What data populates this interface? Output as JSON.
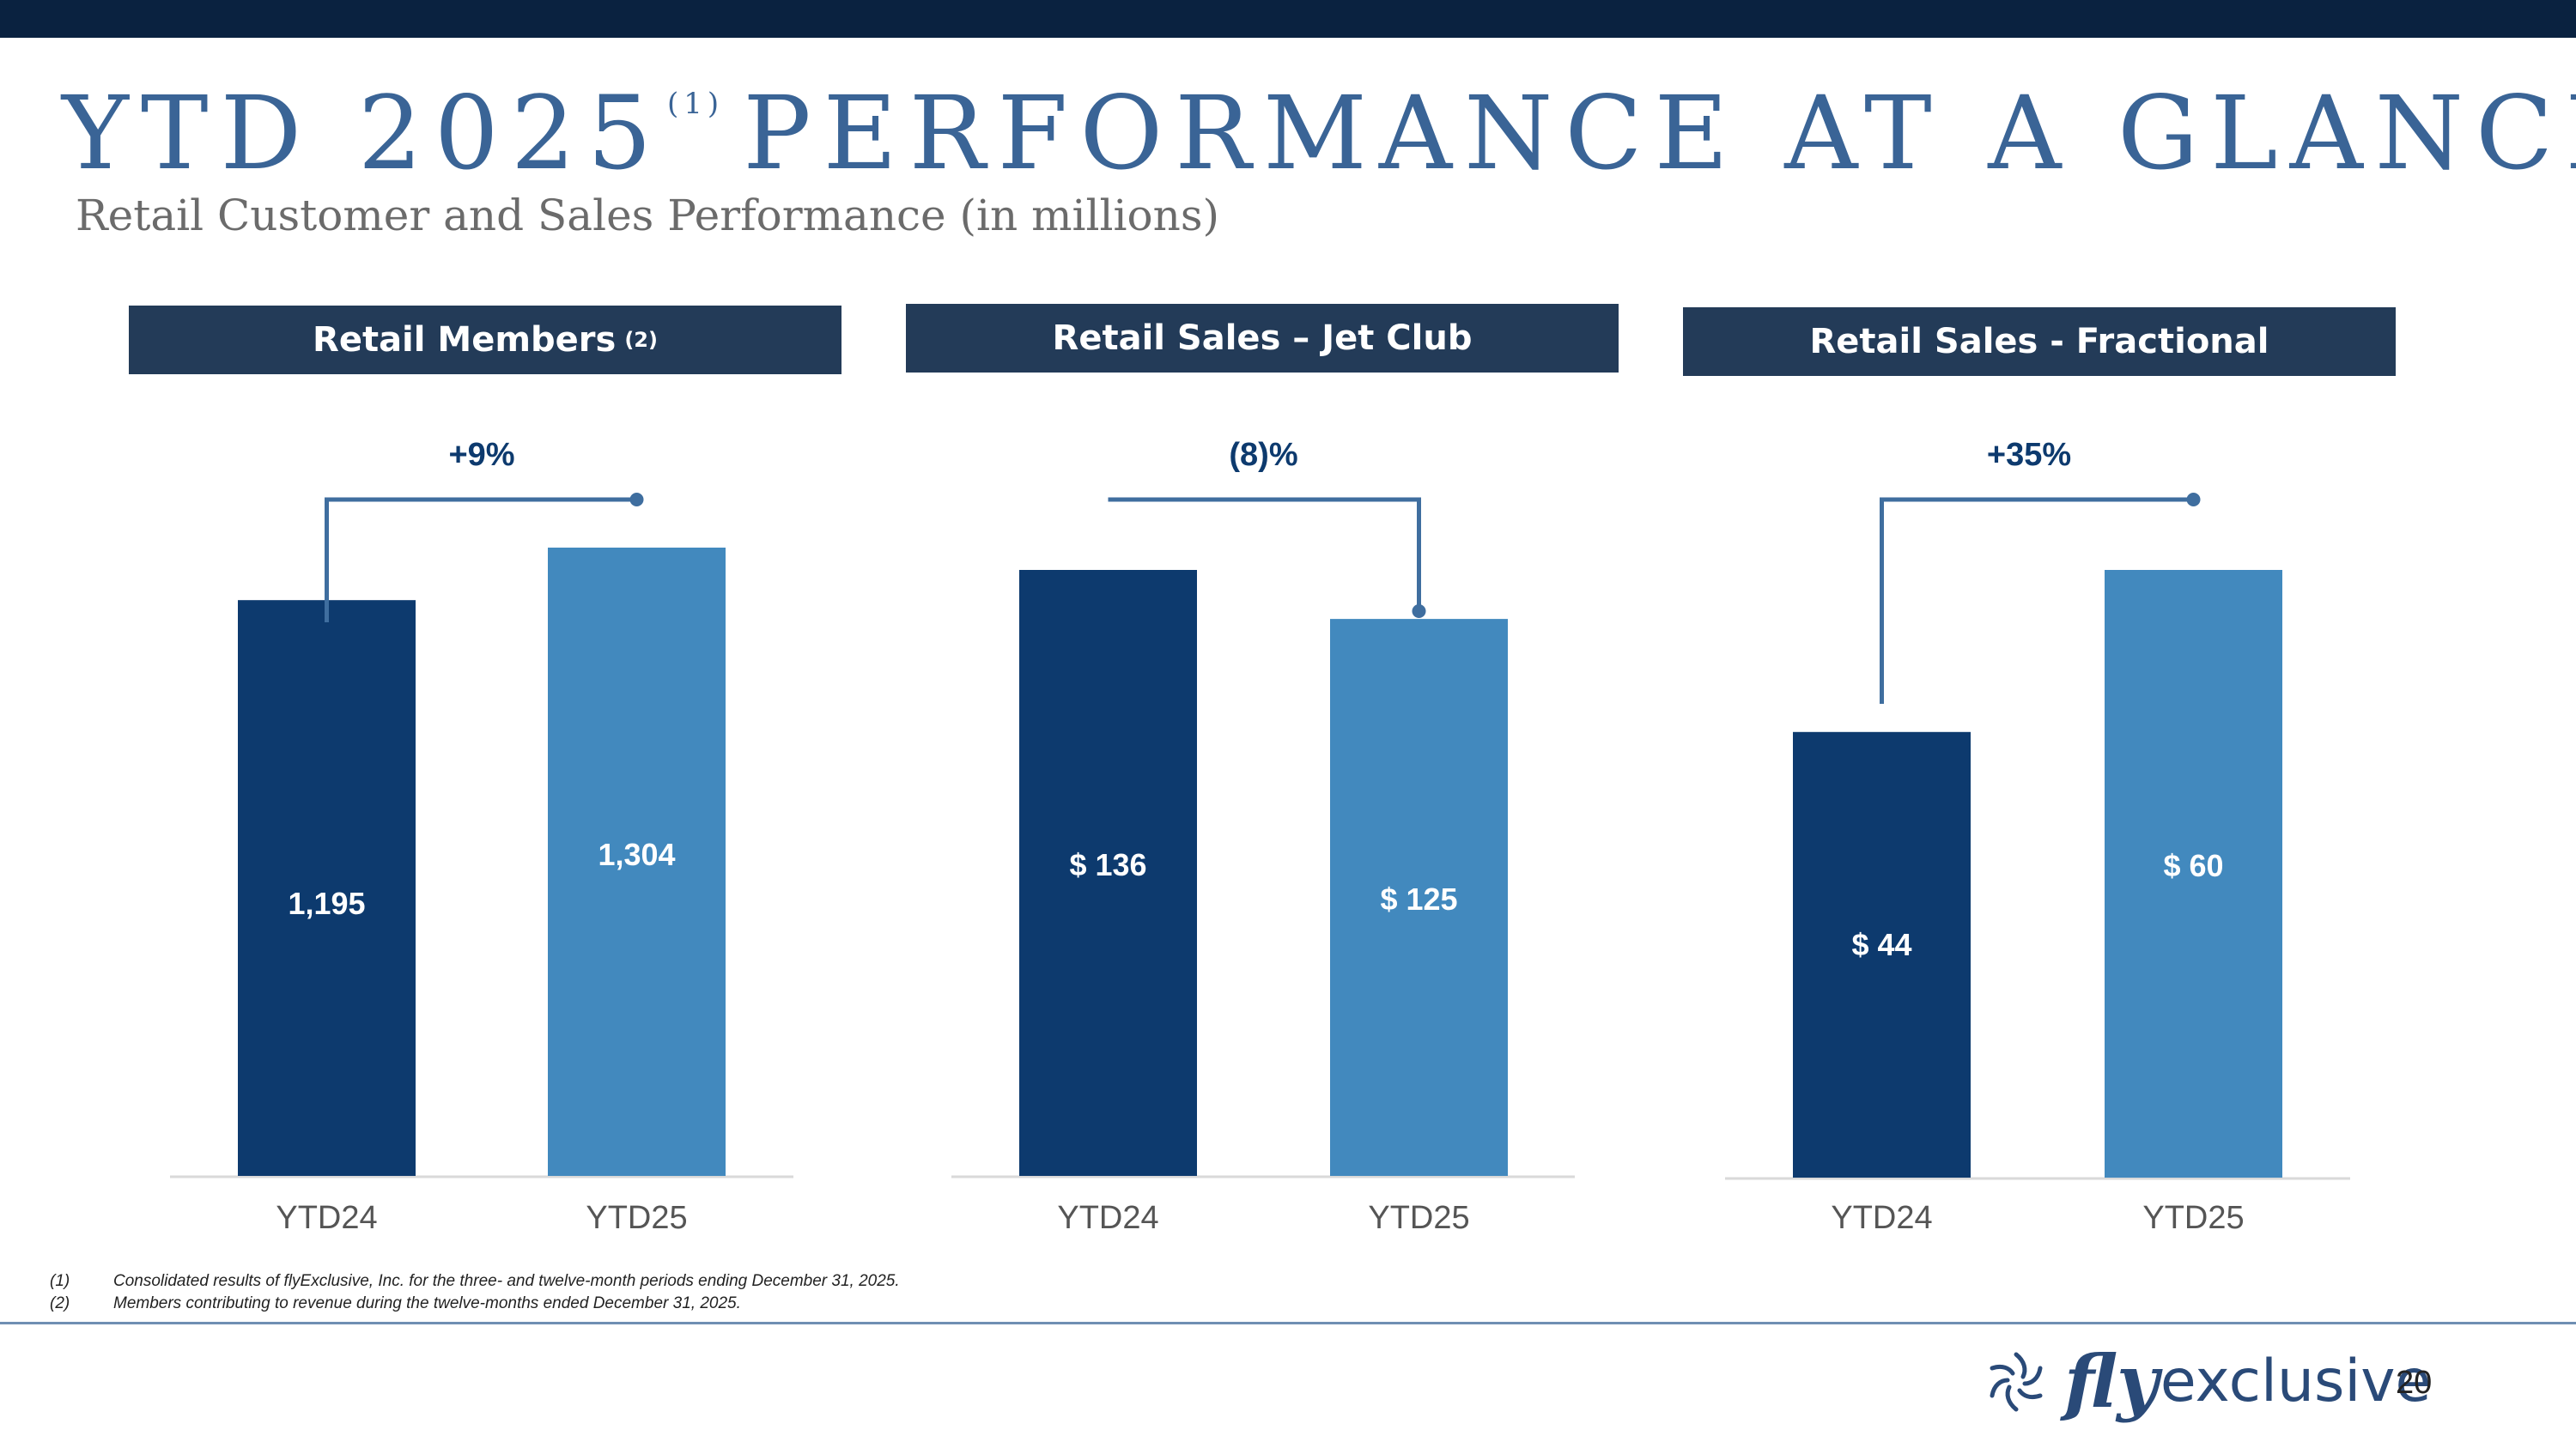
{
  "title": {
    "main_left": "YTD 2025",
    "footnote_mark": "(1)",
    "main_right": "PERFORMANCE AT A GLANCE",
    "subtitle": "Retail Customer and Sales Performance (in millions)"
  },
  "colors": {
    "dark_bar": "#0d3a6e",
    "light_bar": "#4289be",
    "header": "#233b58",
    "title": "#3a6496",
    "connector": "#3f6e9f"
  },
  "chart_data": [
    {
      "type": "bar",
      "title": "Retail Members",
      "title_note": "(2)",
      "categories": [
        "YTD24",
        "YTD25"
      ],
      "values": [
        1195,
        1304
      ],
      "value_labels": [
        "1,195",
        "1,304"
      ],
      "change_label": "+9%"
    },
    {
      "type": "bar",
      "title": "Retail Sales – Jet Club",
      "title_note": "",
      "categories": [
        "YTD24",
        "YTD25"
      ],
      "values": [
        136,
        125
      ],
      "value_labels": [
        "$ 136",
        "$ 125"
      ],
      "change_label": "(8)%"
    },
    {
      "type": "bar",
      "title": "Retail Sales - Fractional",
      "title_note": "",
      "categories": [
        "YTD24",
        "YTD25"
      ],
      "values": [
        44,
        60
      ],
      "value_labels": [
        "$ 44",
        "$ 60"
      ],
      "change_label": "+35%"
    }
  ],
  "footnotes": [
    {
      "num": "(1)",
      "text": "Consolidated results of flyExclusive, Inc. for the three- and twelve-month periods ending December 31, 2025."
    },
    {
      "num": "(2)",
      "text": "Members contributing to revenue during the twelve-months ended December 31, 2025."
    }
  ],
  "logo": {
    "icon": "turbine-icon",
    "brand_a": "fly",
    "brand_b": "exclusive"
  },
  "page_number": "20"
}
